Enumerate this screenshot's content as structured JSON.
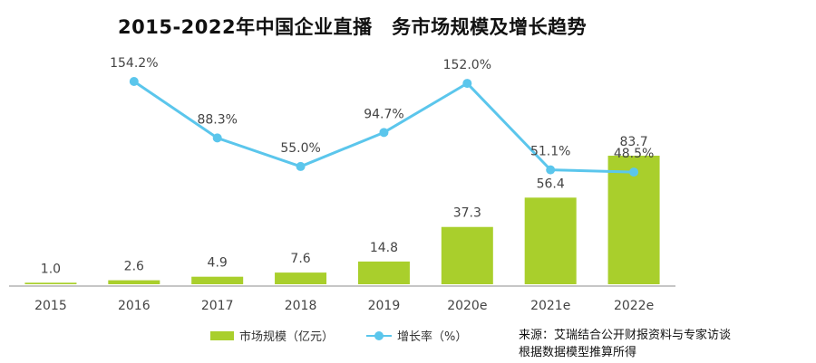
{
  "title": "2015-2022年中国企业直播　务市场规模及增长趋势",
  "chart_data": {
    "type": "bar",
    "title": "2015-2022年中国企业直播　务市场规模及增长趋势",
    "categories": [
      "2015",
      "2016",
      "2017",
      "2018",
      "2019",
      "2020e",
      "2021e",
      "2022e"
    ],
    "series": [
      {
        "name": "市场规模（亿元）",
        "type": "bar",
        "values": [
          1.0,
          2.6,
          4.9,
          7.6,
          14.8,
          37.3,
          56.4,
          83.7
        ],
        "labels": [
          "1.0",
          "2.6",
          "4.9",
          "7.6",
          "14.8",
          "37.3",
          "56.4",
          "83.7"
        ]
      },
      {
        "name": "增长率（%）",
        "type": "line",
        "values": [
          null,
          154.2,
          88.3,
          55.0,
          94.7,
          152.0,
          51.1,
          48.5
        ],
        "labels": [
          null,
          "154.2%",
          "88.3%",
          "55.0%",
          "94.7%",
          "152.0%",
          "51.1%",
          "48.5%"
        ]
      }
    ],
    "xlabel": "",
    "ylabel": "",
    "ylim_bar": [
      0,
      100
    ],
    "ylim_line": [
      0,
      300
    ],
    "grid": false,
    "legend_position": "bottom"
  },
  "legend": {
    "bar_label": "市场规模（亿元）",
    "line_label": "增长率（%）"
  },
  "source": {
    "line1": "来源：艾瑞结合公开财报资料与专家访谈",
    "line2": "根据数据模型推算所得"
  },
  "colors": {
    "bar": "#a9cf2c",
    "line": "#5bc6ec",
    "axis": "#b3b3b3",
    "text": "#444444"
  }
}
